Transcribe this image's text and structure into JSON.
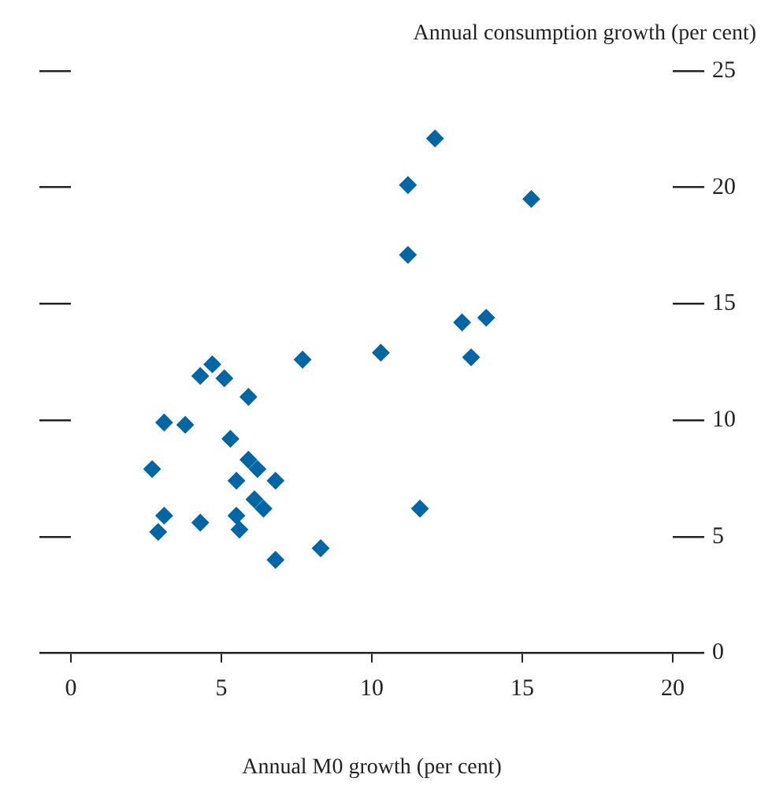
{
  "chart_data": {
    "type": "scatter",
    "ylabel": "Annual consumption growth (per cent)",
    "xlabel": "Annual M0 growth (per cent)",
    "xlim": [
      0,
      20
    ],
    "xticks": [
      0,
      5,
      10,
      15,
      20
    ],
    "ylim": [
      0,
      25
    ],
    "yticks": [
      0,
      5,
      10,
      15,
      20,
      25
    ],
    "grid": false,
    "legend": false,
    "marker": "diamond",
    "series": [
      {
        "color": "#0066a4",
        "x": [
          12.1,
          11.2,
          15.3,
          11.2,
          13.0,
          13.8,
          13.3,
          10.3,
          7.7,
          4.7,
          4.3,
          5.1,
          5.9,
          3.1,
          3.8,
          5.3,
          2.7,
          5.9,
          6.2,
          5.5,
          6.8,
          6.1,
          6.4,
          5.5,
          5.6,
          3.1,
          2.9,
          4.3,
          6.8,
          8.3,
          11.6
        ],
        "values": [
          22.1,
          20.1,
          19.5,
          17.1,
          14.2,
          14.4,
          12.7,
          12.9,
          12.6,
          12.4,
          11.9,
          11.8,
          11.0,
          9.9,
          9.8,
          9.2,
          7.9,
          8.3,
          7.9,
          7.4,
          7.4,
          6.6,
          6.2,
          5.9,
          5.3,
          5.9,
          5.2,
          5.6,
          4.0,
          4.5,
          6.2
        ]
      }
    ]
  }
}
